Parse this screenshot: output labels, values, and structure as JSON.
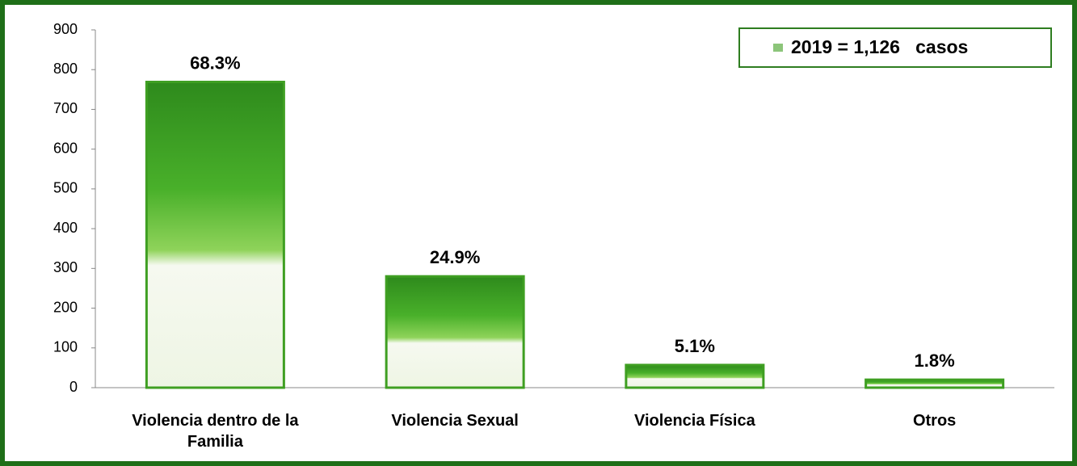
{
  "chart_data": {
    "type": "bar",
    "categories": [
      "Violencia dentro de la Familia",
      "Violencia Sexual",
      "Violencia Física",
      "Otros"
    ],
    "series": [
      {
        "name": "2019 = 1,126   casos",
        "color": "#3f9f22",
        "values": [
          769,
          280,
          57,
          20
        ],
        "value_labels": [
          "68.3%",
          "24.9%",
          "5.1%",
          "1.8%"
        ]
      }
    ],
    "ylim": [
      0,
      900
    ],
    "yticks": [
      0,
      100,
      200,
      300,
      400,
      500,
      600,
      700,
      800,
      900
    ],
    "grid": false,
    "legend": "top-right"
  }
}
